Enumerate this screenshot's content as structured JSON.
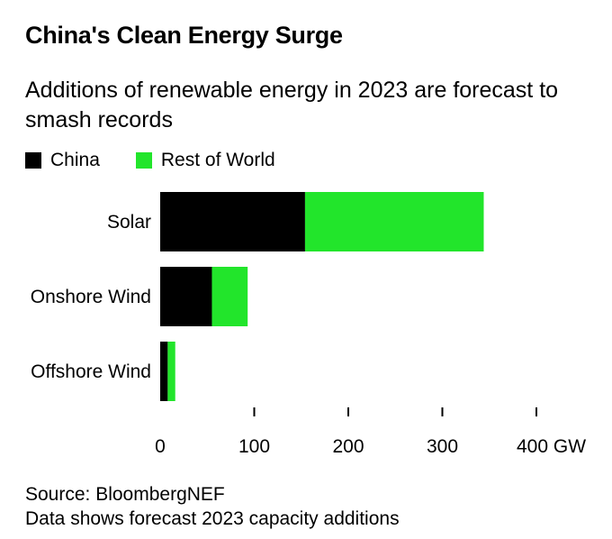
{
  "chart_data": {
    "type": "bar",
    "orientation": "horizontal",
    "stacked": true,
    "title": "China's Clean Energy Surge",
    "subtitle": "Additions of renewable energy in 2023 are forecast to smash records",
    "categories": [
      "Solar",
      "Onshore Wind",
      "Offshore Wind"
    ],
    "series": [
      {
        "name": "China",
        "color": "#000000",
        "values": [
          154,
          55,
          8
        ]
      },
      {
        "name": "Rest of World",
        "color": "#22e52b",
        "values": [
          190,
          38,
          8
        ]
      }
    ],
    "xlim": [
      0,
      400
    ],
    "xticks": [
      0,
      100,
      200,
      300,
      400
    ],
    "xtick_labels": [
      "0",
      "100",
      "200",
      "300",
      "400 GW"
    ],
    "xlabel": "",
    "ylabel": "",
    "unit": "GW",
    "legend_position": "top-left",
    "source": "Source: BloombergNEF",
    "note": "Data shows forecast 2023 capacity additions"
  }
}
